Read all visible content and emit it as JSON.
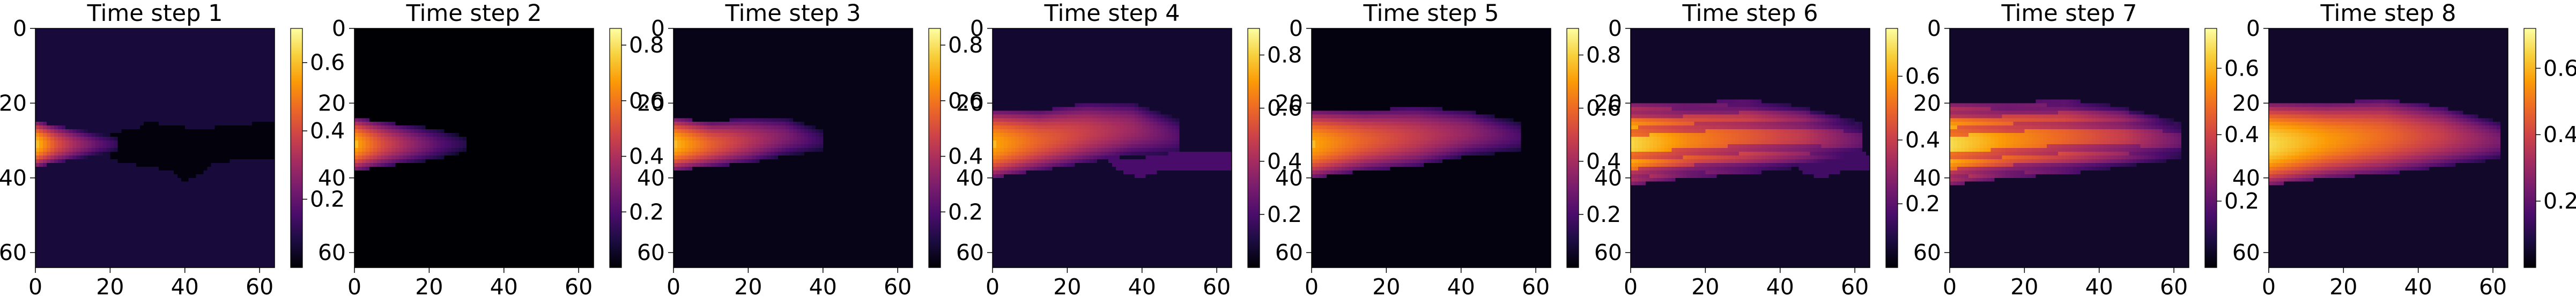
{
  "figure": {
    "colormap": "magma",
    "colormap_stops": [
      "#000004",
      "#1b0c41",
      "#4a0c6b",
      "#781c6d",
      "#a52c60",
      "#cf4446",
      "#ed6925",
      "#fb9b06",
      "#f7d13d",
      "#fcffa4"
    ]
  },
  "chart_data": [
    {
      "type": "heatmap",
      "title": "Time step 1",
      "xticks": [
        0,
        20,
        40,
        60
      ],
      "yticks": [
        0,
        20,
        40,
        60
      ],
      "xlim": [
        0,
        64
      ],
      "ylim": [
        64,
        0
      ],
      "grid_size": [
        64,
        64
      ],
      "colorbar": {
        "ticks": [
          0.2,
          0.4,
          0.6
        ],
        "range": [
          0,
          0.7
        ]
      },
      "background_value": 0.07,
      "plume": {
        "source": [
          0,
          31
        ],
        "peak": 0.7,
        "center_y": [
          31,
          31,
          31,
          31,
          31
        ],
        "half_width": [
          6,
          5,
          4,
          3,
          2
        ],
        "intensity": [
          0.6,
          0.42,
          0.3,
          0.2,
          0.12
        ],
        "extent_x": 22
      },
      "dark_region": {
        "value": 0.01,
        "x_start": 20,
        "polygon": [
          [
            20,
            28
          ],
          [
            27,
            27
          ],
          [
            30,
            25
          ],
          [
            36,
            26
          ],
          [
            44,
            27
          ],
          [
            52,
            26
          ],
          [
            64,
            25
          ],
          [
            64,
            35
          ],
          [
            56,
            35
          ],
          [
            48,
            36
          ],
          [
            44,
            39
          ],
          [
            40,
            41
          ],
          [
            36,
            38
          ],
          [
            30,
            37
          ],
          [
            24,
            36
          ],
          [
            20,
            35
          ]
        ]
      }
    },
    {
      "type": "heatmap",
      "title": "Time step 2",
      "xticks": [
        0,
        20,
        40,
        60
      ],
      "yticks": [
        0,
        20,
        40,
        60
      ],
      "xlim": [
        0,
        64
      ],
      "ylim": [
        64,
        0
      ],
      "grid_size": [
        64,
        64
      ],
      "colorbar": {
        "ticks": [
          0.2,
          0.4,
          0.6,
          0.8
        ],
        "range": [
          0,
          0.86
        ]
      },
      "background_value": 0.0,
      "plume": {
        "source": [
          0,
          31
        ],
        "peak": 0.86,
        "center_y": [
          31,
          31,
          31,
          31,
          31
        ],
        "half_width": [
          7,
          6,
          5,
          4,
          2
        ],
        "intensity": [
          0.7,
          0.5,
          0.35,
          0.22,
          0.12
        ],
        "extent_x": 30
      }
    },
    {
      "type": "heatmap",
      "title": "Time step 3",
      "xticks": [
        0,
        20,
        40,
        60
      ],
      "yticks": [
        0,
        20,
        40,
        60
      ],
      "xlim": [
        0,
        64
      ],
      "ylim": [
        64,
        0
      ],
      "grid_size": [
        64,
        64
      ],
      "colorbar": {
        "ticks": [
          0.2,
          0.4,
          0.6,
          0.8
        ],
        "range": [
          0,
          0.86
        ]
      },
      "background_value": 0.03,
      "plume": {
        "source": [
          0,
          31
        ],
        "peak": 0.86,
        "center_y": [
          31,
          31,
          30,
          29,
          30
        ],
        "half_width": [
          7,
          6,
          6,
          5,
          3
        ],
        "intensity": [
          0.72,
          0.55,
          0.42,
          0.3,
          0.15
        ],
        "extent_x": 40
      }
    },
    {
      "type": "heatmap",
      "title": "Time step 4",
      "xticks": [
        0,
        20,
        40,
        60
      ],
      "yticks": [
        0,
        20,
        40,
        60
      ],
      "xlim": [
        0,
        64
      ],
      "ylim": [
        64,
        0
      ],
      "grid_size": [
        64,
        64
      ],
      "colorbar": {
        "ticks": [
          0.2,
          0.4,
          0.6,
          0.8
        ],
        "range": [
          0,
          0.9
        ]
      },
      "background_value": 0.07,
      "plume": {
        "source": [
          0,
          31
        ],
        "peak": 0.9,
        "center_y": [
          31,
          30,
          28,
          27,
          29
        ],
        "half_width": [
          9,
          8,
          8,
          7,
          5
        ],
        "intensity": [
          0.72,
          0.58,
          0.48,
          0.38,
          0.22
        ],
        "extent_x": 50
      },
      "dark_region": {
        "value": 0.2,
        "x_start": 30,
        "polygon": [
          [
            30,
            34
          ],
          [
            38,
            35
          ],
          [
            44,
            34
          ],
          [
            50,
            33
          ],
          [
            64,
            33
          ],
          [
            64,
            38
          ],
          [
            56,
            38
          ],
          [
            46,
            38
          ],
          [
            40,
            40
          ],
          [
            34,
            38
          ]
        ]
      }
    },
    {
      "type": "heatmap",
      "title": "Time step 5",
      "xticks": [
        0,
        20,
        40,
        60
      ],
      "yticks": [
        0,
        20,
        40,
        60
      ],
      "xlim": [
        0,
        64
      ],
      "ylim": [
        64,
        0
      ],
      "grid_size": [
        64,
        64
      ],
      "colorbar": {
        "ticks": [
          0.2,
          0.4,
          0.6,
          0.8
        ],
        "range": [
          0,
          0.9
        ]
      },
      "background_value": 0.02,
      "plume": {
        "source": [
          0,
          31
        ],
        "peak": 0.9,
        "center_y": [
          31,
          30,
          29,
          28,
          29
        ],
        "half_width": [
          9,
          8,
          8,
          6,
          4
        ],
        "intensity": [
          0.72,
          0.58,
          0.47,
          0.36,
          0.2
        ],
        "extent_x": 56
      }
    },
    {
      "type": "heatmap",
      "title": "Time step 6",
      "xticks": [
        0,
        20,
        40,
        60
      ],
      "yticks": [
        0,
        20,
        40,
        60
      ],
      "xlim": [
        0,
        64
      ],
      "ylim": [
        64,
        0
      ],
      "grid_size": [
        64,
        64
      ],
      "colorbar": {
        "ticks": [
          0.2,
          0.4,
          0.6
        ],
        "range": [
          0,
          0.75
        ]
      },
      "background_value": 0.05,
      "plume": {
        "source": [
          0,
          31
        ],
        "peak": 0.75,
        "center_y": [
          31,
          30,
          29,
          29,
          30
        ],
        "half_width": [
          11,
          10,
          10,
          8,
          5
        ],
        "intensity": [
          0.68,
          0.55,
          0.47,
          0.38,
          0.22
        ],
        "extent_x": 62,
        "banded": true
      },
      "dark_region": {
        "value": 0.15,
        "x_start": 44,
        "polygon": [
          [
            44,
            34
          ],
          [
            50,
            34
          ],
          [
            56,
            32
          ],
          [
            62,
            33
          ],
          [
            64,
            34
          ],
          [
            64,
            38
          ],
          [
            58,
            38
          ],
          [
            52,
            40
          ],
          [
            46,
            39
          ]
        ]
      }
    },
    {
      "type": "heatmap",
      "title": "Time step 7",
      "xticks": [
        0,
        20,
        40,
        60
      ],
      "yticks": [
        0,
        20,
        40,
        60
      ],
      "xlim": [
        0,
        64
      ],
      "ylim": [
        64,
        0
      ],
      "grid_size": [
        64,
        64
      ],
      "colorbar": {
        "ticks": [
          0.2,
          0.4,
          0.6
        ],
        "range": [
          0,
          0.72
        ]
      },
      "background_value": 0.05,
      "plume": {
        "source": [
          0,
          31
        ],
        "peak": 0.72,
        "center_y": [
          31,
          30,
          29,
          29,
          30
        ],
        "half_width": [
          11,
          10,
          10,
          8,
          5
        ],
        "intensity": [
          0.66,
          0.55,
          0.47,
          0.38,
          0.22
        ],
        "extent_x": 62,
        "banded": true
      }
    },
    {
      "type": "heatmap",
      "title": "Time step 8",
      "xticks": [
        0,
        20,
        40,
        60
      ],
      "yticks": [
        0,
        20,
        40,
        60
      ],
      "xlim": [
        0,
        64
      ],
      "ylim": [
        64,
        0
      ],
      "grid_size": [
        64,
        64
      ],
      "colorbar": {
        "ticks": [
          0.2,
          0.4,
          0.6
        ],
        "range": [
          0,
          0.72
        ]
      },
      "background_value": 0.05,
      "plume": {
        "source": [
          0,
          31
        ],
        "peak": 0.72,
        "center_y": [
          31,
          30,
          29,
          29,
          30
        ],
        "half_width": [
          11,
          10,
          10,
          8,
          5
        ],
        "intensity": [
          0.66,
          0.56,
          0.48,
          0.38,
          0.24
        ],
        "extent_x": 62
      }
    }
  ]
}
